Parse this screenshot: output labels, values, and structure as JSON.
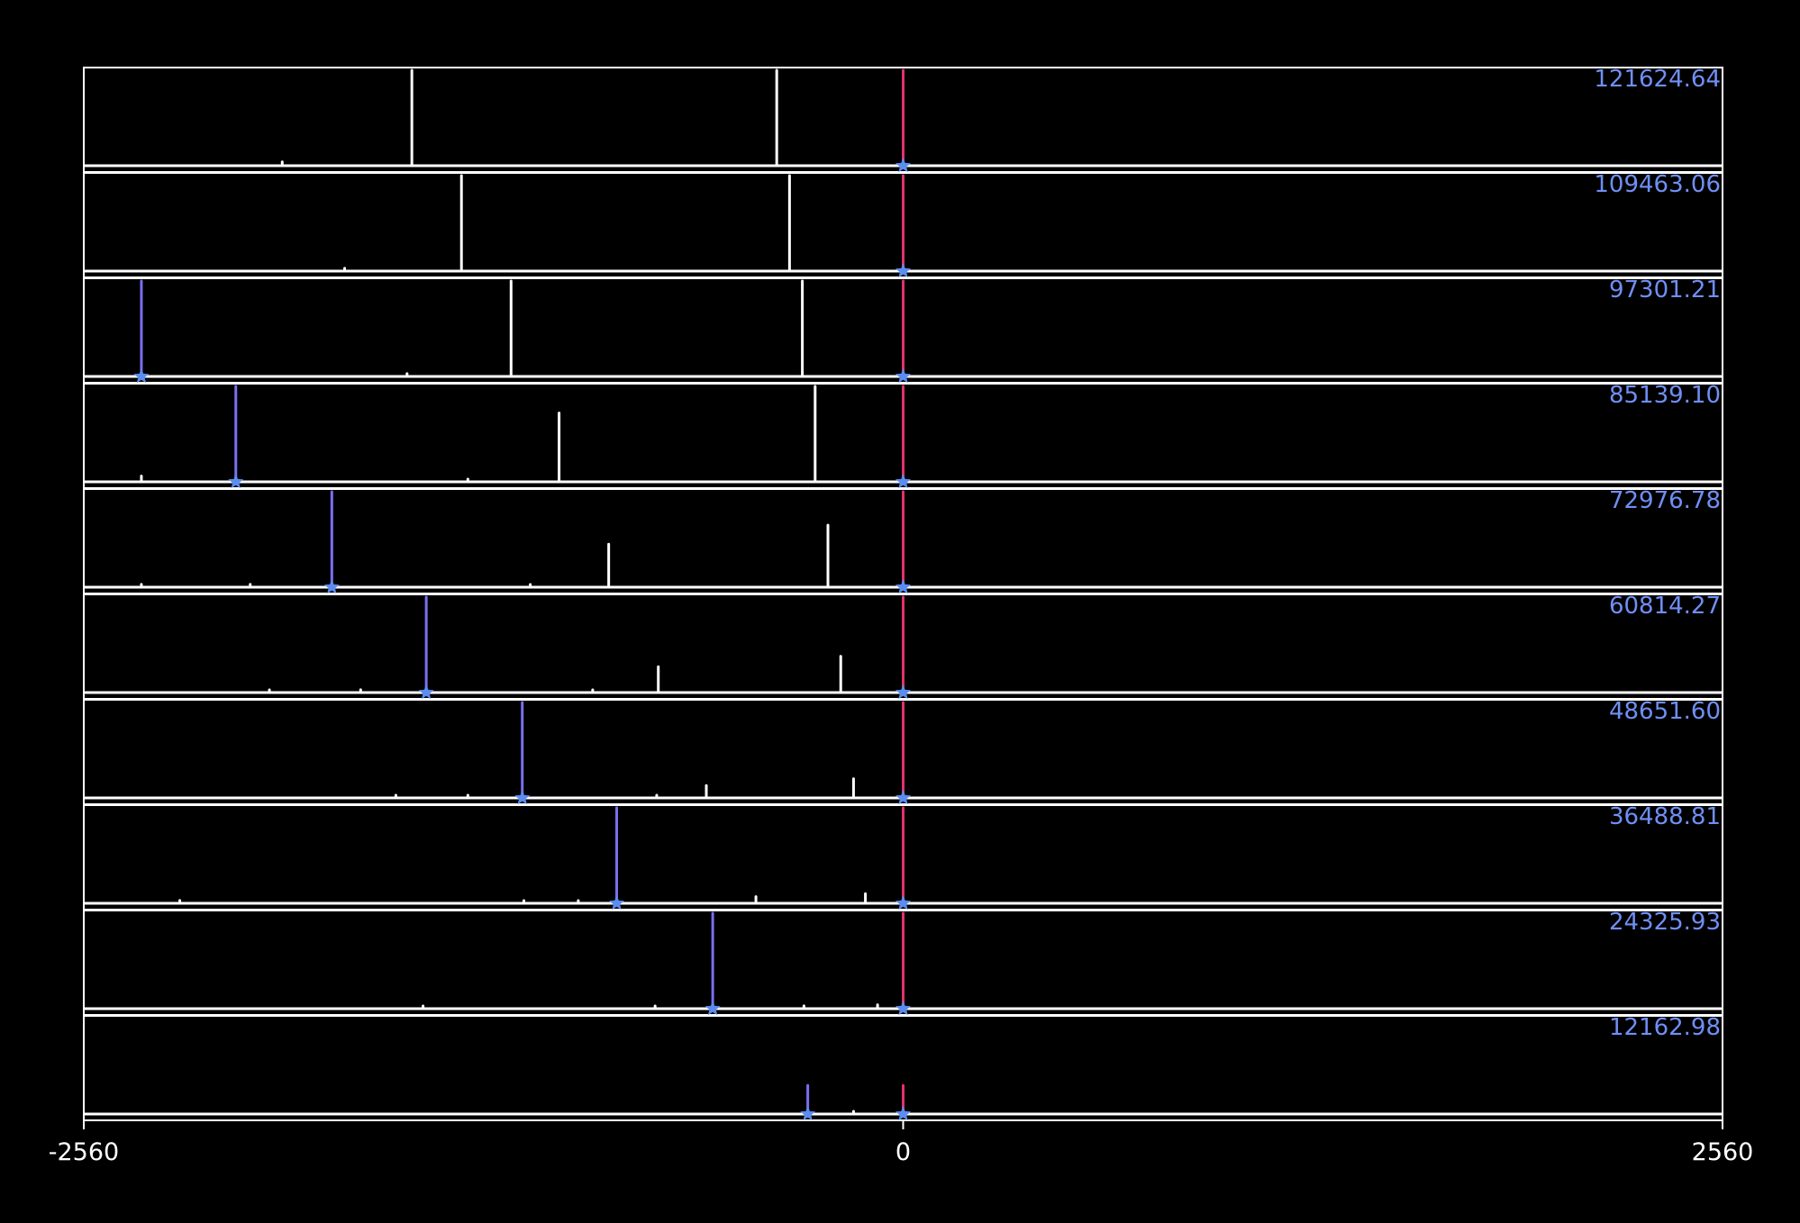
{
  "chart_data": {
    "type": "line",
    "x_range": [
      -2560,
      2560
    ],
    "x_ticks": [
      {
        "value": -2560,
        "label": "-2560"
      },
      {
        "value": 0,
        "label": "0"
      },
      {
        "value": 2560,
        "label": "2560"
      }
    ],
    "grid": false,
    "colors": {
      "background": "#000000",
      "frame": "#ffffff",
      "spectrum": "#ffffff",
      "label": "#6f8ff5",
      "marker": "#5b8cf0",
      "reference_line": "#e0336e",
      "tracked_line": "#7a6ff0"
    },
    "reference_x": 0,
    "panels": [
      {
        "label": "121624.64",
        "tracked_x": null,
        "peaks": [
          {
            "x": -1940,
            "h": 0.04
          },
          {
            "x": -1535,
            "h": 1.0
          },
          {
            "x": -395,
            "h": 1.0
          }
        ]
      },
      {
        "label": "109463.06",
        "tracked_x": null,
        "peaks": [
          {
            "x": -1745,
            "h": 0.03
          },
          {
            "x": -1380,
            "h": 1.0
          },
          {
            "x": -355,
            "h": 1.0
          }
        ]
      },
      {
        "label": "97301.21",
        "tracked_x": -2380,
        "peaks": [
          {
            "x": -1550,
            "h": 0.03
          },
          {
            "x": -1225,
            "h": 1.0
          },
          {
            "x": -315,
            "h": 1.0
          }
        ]
      },
      {
        "label": "85139.10",
        "tracked_x": -2085,
        "peaks": [
          {
            "x": -2380,
            "h": 0.06
          },
          {
            "x": -1360,
            "h": 0.02
          },
          {
            "x": -1075,
            "h": 0.72
          },
          {
            "x": -275,
            "h": 1.0
          }
        ]
      },
      {
        "label": "72976.78",
        "tracked_x": -1785,
        "peaks": [
          {
            "x": -2380,
            "h": 0.03
          },
          {
            "x": -2040,
            "h": 0.03
          },
          {
            "x": -1165,
            "h": 0.02
          },
          {
            "x": -920,
            "h": 0.45
          },
          {
            "x": -235,
            "h": 0.65
          }
        ]
      },
      {
        "label": "60814.27",
        "tracked_x": -1490,
        "peaks": [
          {
            "x": -1980,
            "h": 0.02
          },
          {
            "x": -1695,
            "h": 0.03
          },
          {
            "x": -970,
            "h": 0.02
          },
          {
            "x": -765,
            "h": 0.27
          },
          {
            "x": -195,
            "h": 0.38
          }
        ]
      },
      {
        "label": "48651.60",
        "tracked_x": -1190,
        "peaks": [
          {
            "x": -1585,
            "h": 0.02
          },
          {
            "x": -1360,
            "h": 0.02
          },
          {
            "x": -770,
            "h": 0.02
          },
          {
            "x": -615,
            "h": 0.13
          },
          {
            "x": -155,
            "h": 0.2
          }
        ]
      },
      {
        "label": "36488.81",
        "tracked_x": -895,
        "peaks": [
          {
            "x": -2260,
            "h": 0.03
          },
          {
            "x": -1185,
            "h": 0.02
          },
          {
            "x": -1015,
            "h": 0.02
          },
          {
            "x": -460,
            "h": 0.07
          },
          {
            "x": -118,
            "h": 0.1
          }
        ]
      },
      {
        "label": "24325.93",
        "tracked_x": -595,
        "peaks": [
          {
            "x": -1500,
            "h": 0.02
          },
          {
            "x": -775,
            "h": 0.02
          },
          {
            "x": -310,
            "h": 0.03
          },
          {
            "x": -80,
            "h": 0.04
          }
        ]
      },
      {
        "label": "12162.98",
        "tracked_x": -298,
        "peaks": [
          {
            "x": -155,
            "h": 0.02
          }
        ]
      }
    ],
    "tracked_line_heights": [
      0,
      0,
      1.0,
      1.0,
      1.0,
      1.0,
      1.0,
      1.0,
      1.0,
      0.3
    ],
    "reference_line_heights": [
      1.0,
      1.0,
      1.0,
      1.0,
      1.0,
      1.0,
      1.0,
      1.0,
      1.0,
      0.3
    ]
  }
}
